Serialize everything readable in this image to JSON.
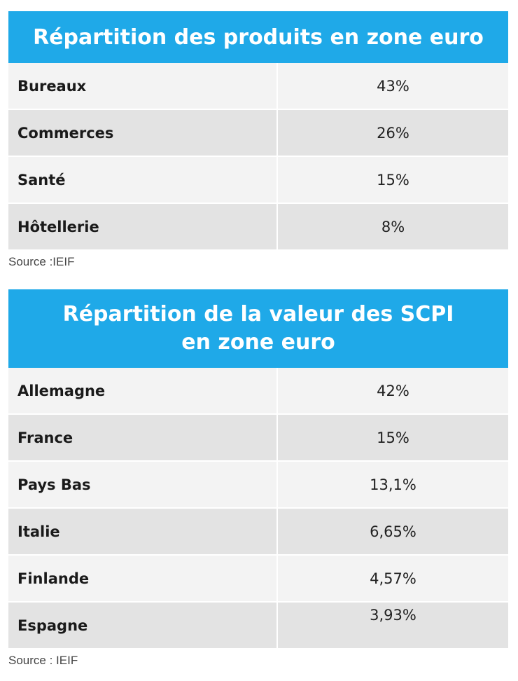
{
  "table1": {
    "title": "Répartition des produits en zone euro",
    "rows": [
      {
        "label": "Bureaux",
        "value": "43%"
      },
      {
        "label": "Commerces",
        "value": "26%"
      },
      {
        "label": "Santé",
        "value": "15%"
      },
      {
        "label": "Hôtellerie",
        "value": "8%"
      }
    ],
    "source": "Source :IEIF"
  },
  "table2": {
    "title_line1": "Répartition de la valeur des SCPI",
    "title_line2": "en zone euro",
    "rows": [
      {
        "label": "Allemagne",
        "value": "42%"
      },
      {
        "label": "France",
        "value": "15%"
      },
      {
        "label": "Pays Bas",
        "value": "13,1%"
      },
      {
        "label": "Italie",
        "value": "6,65%"
      },
      {
        "label": "Finlande",
        "value": "4,57%"
      },
      {
        "label": "Espagne",
        "value": "3,93%"
      }
    ],
    "source": "Source : IEIF"
  },
  "colors": {
    "header": "#1fa9e8",
    "row_light": "#f3f3f3",
    "row_dark": "#e3e3e3"
  }
}
